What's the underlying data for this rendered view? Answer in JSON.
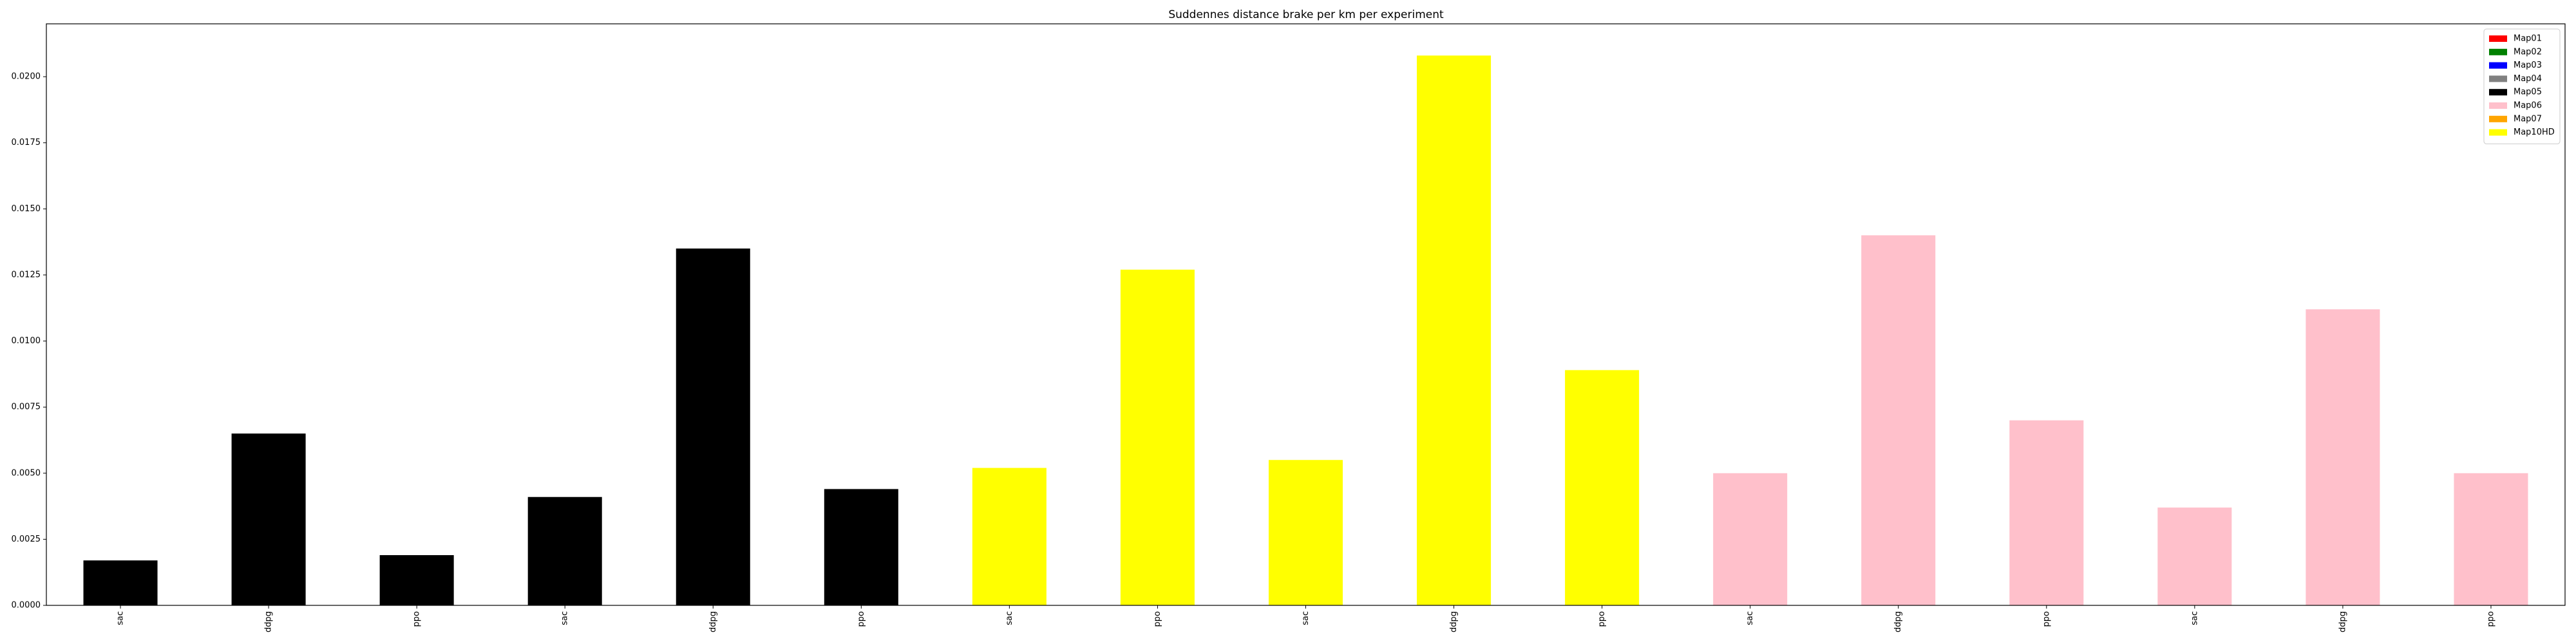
{
  "chart_data": {
    "type": "bar",
    "title": "Suddennes distance brake per km per experiment",
    "xlabel": "",
    "ylabel": "",
    "ylim": [
      0,
      0.022
    ],
    "yticks": [
      "0.0000",
      "0.0025",
      "0.0050",
      "0.0075",
      "0.0100",
      "0.0125",
      "0.0150",
      "0.0175",
      "0.0200"
    ],
    "ytick_values": [
      0,
      0.0025,
      0.005,
      0.0075,
      0.01,
      0.0125,
      0.015,
      0.0175,
      0.02
    ],
    "grid": false,
    "legend_position": "top-right",
    "legend": [
      {
        "name": "Map01",
        "color": "#ff0000"
      },
      {
        "name": "Map02",
        "color": "#008000"
      },
      {
        "name": "Map03",
        "color": "#0000ff"
      },
      {
        "name": "Map04",
        "color": "#808080"
      },
      {
        "name": "Map05",
        "color": "#000000"
      },
      {
        "name": "Map06",
        "color": "#ffc0cb"
      },
      {
        "name": "Map07",
        "color": "#ffa500"
      },
      {
        "name": "Map10HD",
        "color": "#ffff00"
      }
    ],
    "bars": [
      {
        "label": "sac",
        "value": 0.0017,
        "color": "#000000"
      },
      {
        "label": "ddpg",
        "value": 0.0065,
        "color": "#000000"
      },
      {
        "label": "ppo",
        "value": 0.0019,
        "color": "#000000"
      },
      {
        "label": "sac",
        "value": 0.0041,
        "color": "#000000"
      },
      {
        "label": "ddpg",
        "value": 0.0135,
        "color": "#000000"
      },
      {
        "label": "ppo",
        "value": 0.0044,
        "color": "#000000"
      },
      {
        "label": "sac",
        "value": 0.0052,
        "color": "#ffff00"
      },
      {
        "label": "ppo",
        "value": 0.0127,
        "color": "#ffff00"
      },
      {
        "label": "sac",
        "value": 0.0055,
        "color": "#ffff00"
      },
      {
        "label": "ddpg",
        "value": 0.0208,
        "color": "#ffff00"
      },
      {
        "label": "ppo",
        "value": 0.0089,
        "color": "#ffff00"
      },
      {
        "label": "sac",
        "value": 0.005,
        "color": "#ffc0cb"
      },
      {
        "label": "ddpg",
        "value": 0.014,
        "color": "#ffc0cb"
      },
      {
        "label": "ppo",
        "value": 0.007,
        "color": "#ffc0cb"
      },
      {
        "label": "sac",
        "value": 0.0037,
        "color": "#ffc0cb"
      },
      {
        "label": "ddpg",
        "value": 0.0112,
        "color": "#ffc0cb"
      },
      {
        "label": "ppo",
        "value": 0.005,
        "color": "#ffc0cb"
      }
    ]
  }
}
